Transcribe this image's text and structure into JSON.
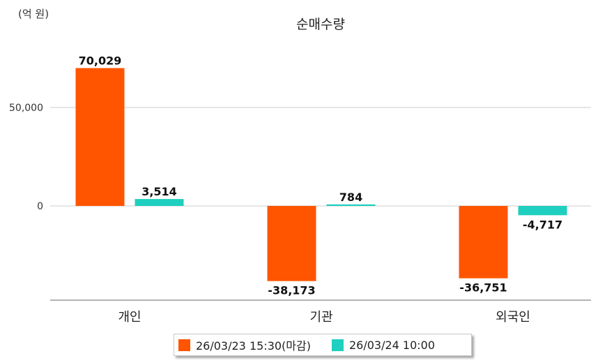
{
  "chart_data": {
    "type": "bar",
    "title": "순매수량",
    "unit_label": "(억 원)",
    "xlabel": "",
    "ylabel": "",
    "categories": [
      "개인",
      "기관",
      "외국인"
    ],
    "series": [
      {
        "name": "26/03/23 15:30(마감)",
        "color": "#ff5500",
        "values": [
          70029,
          -38173,
          -36751
        ],
        "labels": [
          "70,029",
          "-38,173",
          "-36,751"
        ]
      },
      {
        "name": "26/03/24 10:00",
        "color": "#1fcfbf",
        "values": [
          3514,
          784,
          -4717
        ],
        "labels": [
          "3,514",
          "784",
          "-4,717"
        ]
      }
    ],
    "y_ticks": [
      0,
      50000
    ],
    "y_tick_labels": [
      "0",
      "50,000"
    ],
    "ylim": [
      -48000,
      88000
    ],
    "grid": true,
    "legend_position": "bottom"
  }
}
